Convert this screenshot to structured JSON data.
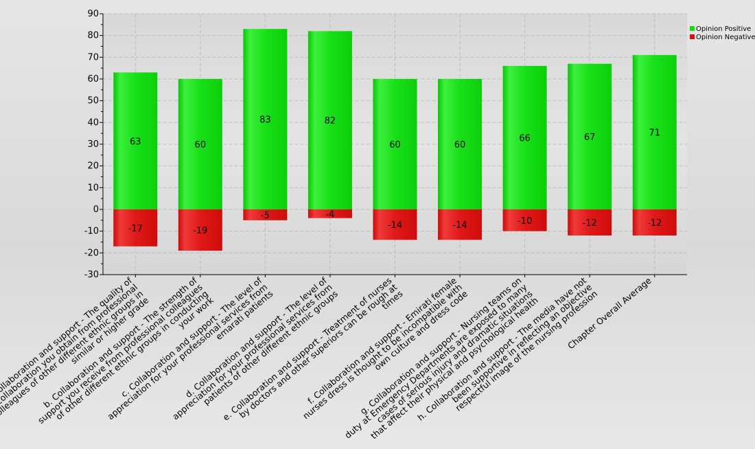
{
  "chart_data": {
    "type": "bar",
    "stacked": true,
    "title": "",
    "xlabel": "",
    "ylabel": "",
    "ylim": [
      -30,
      90
    ],
    "yticks": [
      -30,
      -20,
      -10,
      0,
      10,
      20,
      30,
      40,
      50,
      60,
      70,
      80,
      90
    ],
    "grid": true,
    "legend_position": "top-right",
    "categories": [
      [
        "Collaboration and support - The quality of",
        "collaboration you obtain from professional",
        "colleagues of other different ethnic groups in",
        "similar or higher grade"
      ],
      [
        "b. Collaboration and support - The strength of",
        "support you receive from professional colleagues",
        "of other different ethnic groups in conducting",
        "your work"
      ],
      [
        "c. Collaboration and support - The level of",
        "appreciation for your professional services from",
        "emarati patients"
      ],
      [
        "d. Collaboration and support - The level of",
        "appreciation for your professional services from",
        "patients of other different ethnic groups"
      ],
      [
        "e. Collaboration and support - Treatment of nurses",
        "by doctors and other superiors can be rough at",
        "times"
      ],
      [
        "f. Collaboration and support - Emirati female",
        "nurses dress is thought to be incompatible with",
        "own culture and dress code"
      ],
      [
        "g. Collaboration and support - Nursing teams on",
        "duty at Emergency Departments are exposed to many",
        "cases of serious injury and dramatic situations",
        "that affect their physical and psychological health"
      ],
      [
        "h. Collaboration and support - The media have not",
        "been supportive in reflecting an objective",
        "respectful image of the nursing profession"
      ],
      [
        "Chapter Overall Average"
      ]
    ],
    "series": [
      {
        "name": "Opinion Positive",
        "color": "#11dd11",
        "values": [
          63,
          60,
          83,
          82,
          60,
          60,
          66,
          67,
          71
        ]
      },
      {
        "name": "Opinion Negative",
        "color": "#dd1111",
        "values": [
          -17,
          -19,
          -5,
          -4,
          -14,
          -14,
          -10,
          -12,
          -12
        ]
      }
    ]
  }
}
